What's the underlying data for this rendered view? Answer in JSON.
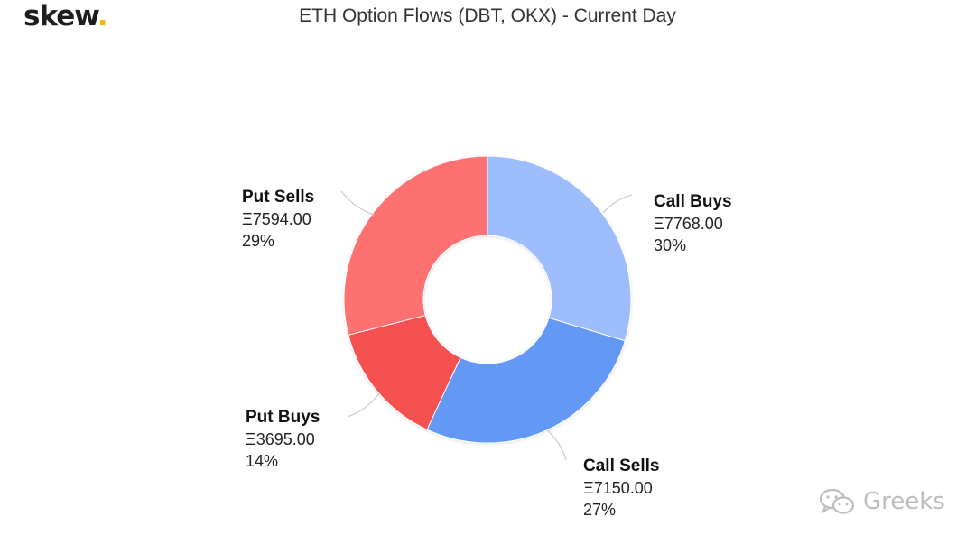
{
  "brand": {
    "name": "skew",
    "dot": "."
  },
  "watermark": {
    "text": "Greeks",
    "icon": "wechat-icon"
  },
  "colors": {
    "call_buys": "#9dbdfc",
    "call_sells": "#6498f4",
    "put_buys": "#f65151",
    "put_sells": "#fd7171",
    "leader": "#cccccc"
  },
  "chart_data": {
    "type": "pie",
    "variant": "donut",
    "title": "ETH Option Flows (DBT, OKX) - Current Day",
    "slices": [
      {
        "label": "Call Buys",
        "value_text": "Ξ7768.00",
        "value": 7768.0,
        "percent_text": "30%",
        "color": "#9dbdfc"
      },
      {
        "label": "Call Sells",
        "value_text": "Ξ7150.00",
        "value": 7150.0,
        "percent_text": "27%",
        "color": "#6498f4"
      },
      {
        "label": "Put Buys",
        "value_text": "Ξ3695.00",
        "value": 3695.0,
        "percent_text": "14%",
        "color": "#f65151"
      },
      {
        "label": "Put Sells",
        "value_text": "Ξ7594.00",
        "value": 7594.0,
        "percent_text": "29%",
        "color": "#fd7171"
      }
    ]
  }
}
